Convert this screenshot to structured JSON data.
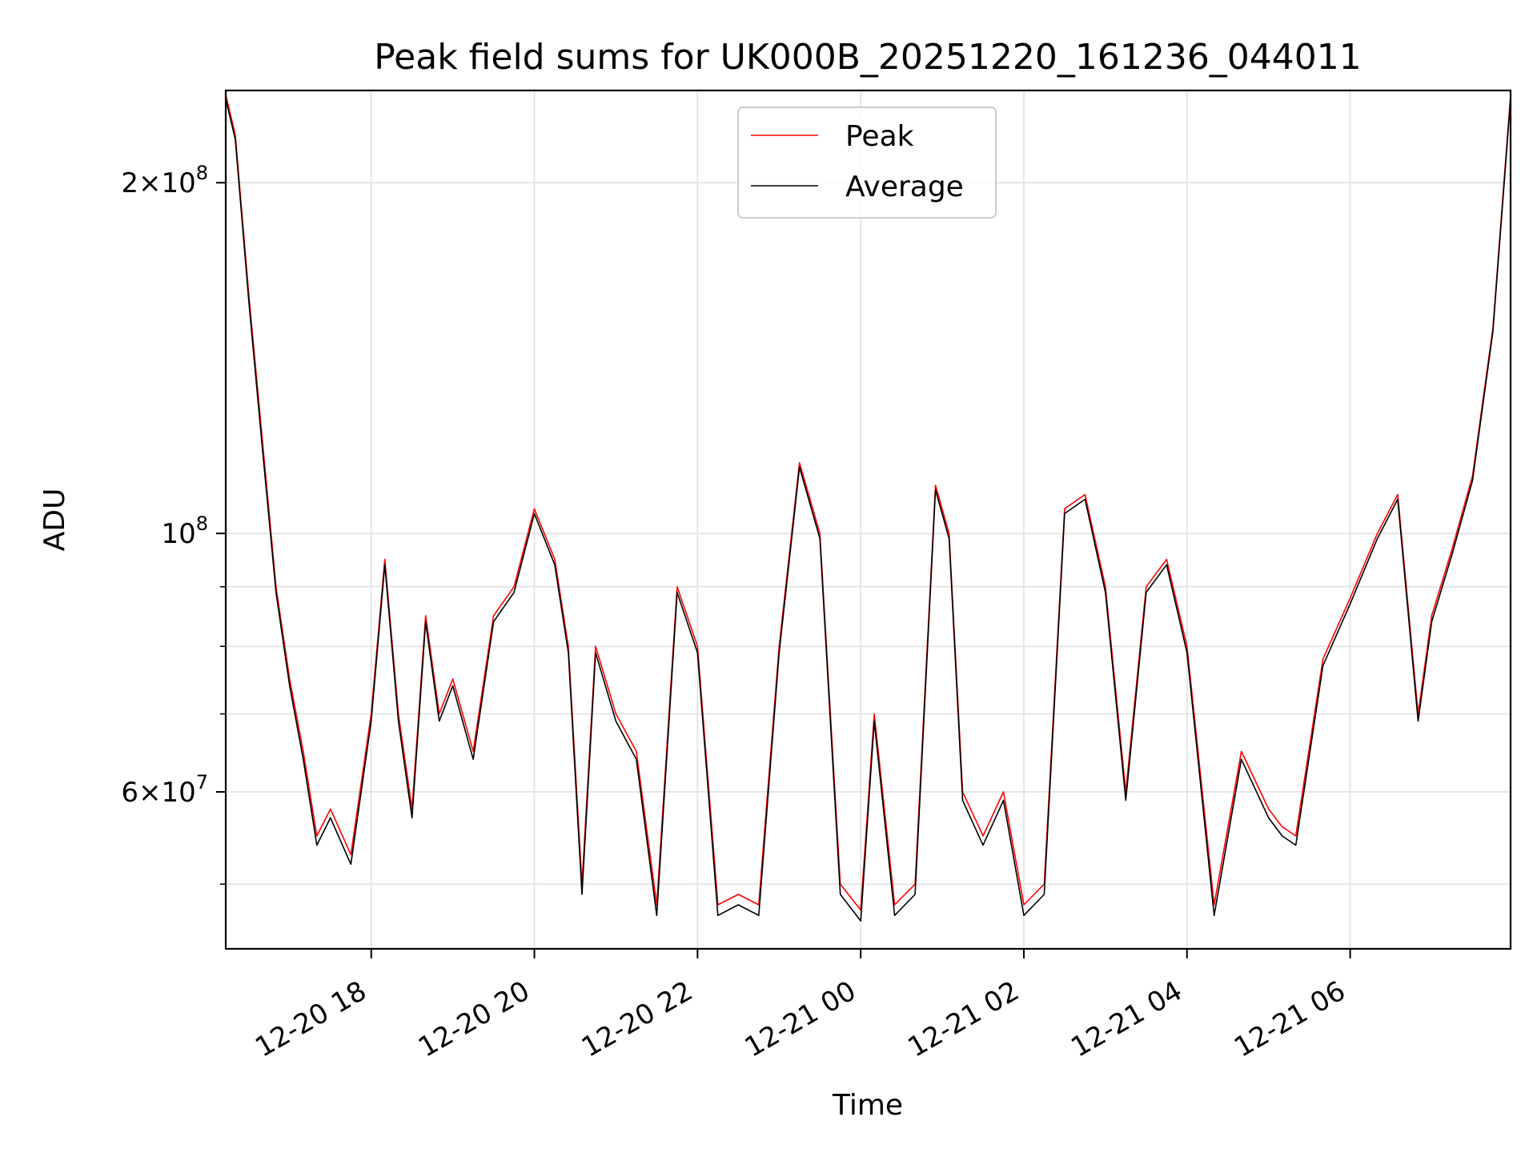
{
  "chart_data": {
    "type": "line",
    "title": "Peak field sums for UK000B_20251220_161236_044011",
    "xlabel": "Time",
    "ylabel": "ADU",
    "yscale": "log",
    "ylim": [
      44000000,
      240000000
    ],
    "xlim": [
      "2025-12-20 16:13",
      "2025-12-21 07:58"
    ],
    "grid": true,
    "legend_position": "top-center",
    "x_ticks": [
      "2025-12-20 18:00",
      "2025-12-20 20:00",
      "2025-12-20 22:00",
      "2025-12-21 00:00",
      "2025-12-21 02:00",
      "2025-12-21 04:00",
      "2025-12-21 06:00"
    ],
    "x_tick_labels": [
      "12-20 18",
      "12-20 20",
      "12-20 22",
      "12-21 00",
      "12-21 02",
      "12-21 04",
      "12-21 06"
    ],
    "y_ticks": [
      60000000,
      100000000,
      200000000
    ],
    "y_tick_labels": [
      {
        "mantissa": "6",
        "exp": "7"
      },
      {
        "mantissa": "",
        "exp": "8"
      },
      {
        "mantissa": "2",
        "exp": "8"
      }
    ],
    "y_minor_ticks": [
      50000000,
      70000000,
      80000000,
      90000000
    ],
    "x": [
      "2025-12-20 16:13",
      "2025-12-20 16:20",
      "2025-12-20 16:30",
      "2025-12-20 16:40",
      "2025-12-20 16:50",
      "2025-12-20 17:00",
      "2025-12-20 17:10",
      "2025-12-20 17:20",
      "2025-12-20 17:30",
      "2025-12-20 17:45",
      "2025-12-20 18:00",
      "2025-12-20 18:10",
      "2025-12-20 18:20",
      "2025-12-20 18:30",
      "2025-12-20 18:40",
      "2025-12-20 18:50",
      "2025-12-20 19:00",
      "2025-12-20 19:15",
      "2025-12-20 19:30",
      "2025-12-20 19:45",
      "2025-12-20 20:00",
      "2025-12-20 20:15",
      "2025-12-20 20:25",
      "2025-12-20 20:35",
      "2025-12-20 20:45",
      "2025-12-20 21:00",
      "2025-12-20 21:15",
      "2025-12-20 21:30",
      "2025-12-20 21:45",
      "2025-12-20 22:00",
      "2025-12-20 22:15",
      "2025-12-20 22:30",
      "2025-12-20 22:45",
      "2025-12-20 23:00",
      "2025-12-20 23:15",
      "2025-12-20 23:30",
      "2025-12-20 23:45",
      "2025-12-21 00:00",
      "2025-12-21 00:10",
      "2025-12-21 00:25",
      "2025-12-21 00:40",
      "2025-12-21 00:55",
      "2025-12-21 01:05",
      "2025-12-21 01:15",
      "2025-12-21 01:30",
      "2025-12-21 01:45",
      "2025-12-21 02:00",
      "2025-12-21 02:15",
      "2025-12-21 02:30",
      "2025-12-21 02:45",
      "2025-12-21 03:00",
      "2025-12-21 03:15",
      "2025-12-21 03:30",
      "2025-12-21 03:45",
      "2025-12-21 04:00",
      "2025-12-21 04:20",
      "2025-12-21 04:40",
      "2025-12-21 05:00",
      "2025-12-21 05:10",
      "2025-12-21 05:20",
      "2025-12-21 05:40",
      "2025-12-21 06:00",
      "2025-12-21 06:20",
      "2025-12-21 06:35",
      "2025-12-21 06:50",
      "2025-12-21 07:00",
      "2025-12-21 07:15",
      "2025-12-21 07:30",
      "2025-12-21 07:45",
      "2025-12-21 07:58"
    ],
    "series": [
      {
        "name": "Peak",
        "color": "#ff0000",
        "values": [
          238000000,
          220000000,
          160000000,
          120000000,
          90000000,
          75000000,
          65000000,
          55000000,
          58000000,
          53000000,
          70000000,
          95000000,
          70000000,
          58000000,
          85000000,
          70000000,
          75000000,
          65000000,
          85000000,
          90000000,
          105000000,
          95000000,
          80000000,
          50000000,
          80000000,
          70000000,
          65000000,
          48000000,
          90000000,
          80000000,
          48000000,
          49000000,
          48000000,
          80000000,
          115000000,
          100000000,
          50000000,
          47500000,
          70000000,
          48000000,
          50000000,
          110000000,
          100000000,
          60000000,
          55000000,
          60000000,
          48000000,
          50000000,
          105000000,
          108000000,
          90000000,
          60000000,
          90000000,
          95000000,
          80000000,
          48000000,
          65000000,
          58000000,
          56000000,
          55000000,
          78000000,
          88000000,
          100000000,
          108000000,
          70000000,
          85000000,
          97000000,
          112000000,
          150000000,
          238000000
        ]
      },
      {
        "name": "Average",
        "color": "#000000",
        "values": [
          236000000,
          218000000,
          158000000,
          118000000,
          89000000,
          74000000,
          64000000,
          54000000,
          57000000,
          52000000,
          69000000,
          94000000,
          69000000,
          57000000,
          84000000,
          69000000,
          74000000,
          64000000,
          84000000,
          89000000,
          104000000,
          94000000,
          79000000,
          49000000,
          79000000,
          69000000,
          64000000,
          47000000,
          89000000,
          79000000,
          47000000,
          48000000,
          47000000,
          79000000,
          114000000,
          99000000,
          49000000,
          46500000,
          69000000,
          47000000,
          49000000,
          109000000,
          99000000,
          59000000,
          54000000,
          59000000,
          47000000,
          49000000,
          104000000,
          107000000,
          89000000,
          59000000,
          89000000,
          94000000,
          79000000,
          47000000,
          64000000,
          57000000,
          55000000,
          54000000,
          77000000,
          87000000,
          99000000,
          107000000,
          69000000,
          84000000,
          96000000,
          111000000,
          149000000,
          236000000
        ]
      }
    ]
  }
}
